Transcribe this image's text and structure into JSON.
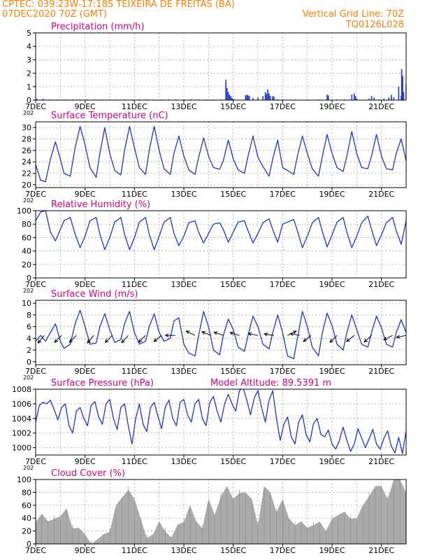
{
  "header": {
    "line1_left": "CPTEC:   039:23W-17:18S   TEIXEIRA DE FREITAS (BA)",
    "line2_left": "07DEC2020 70Z (GMT)",
    "line2_right": "Vertical Grid Line: 70Z",
    "line3_right": "TQ0126L028"
  },
  "colors": {
    "header": "#ff7f00",
    "title": "#e0007a",
    "line": "#1f32d6",
    "bar": "#aaaaaa",
    "wind_arrow": "#000000",
    "grid": "#9a9a9a"
  },
  "x_axis": {
    "ticks": [
      "7DEC",
      "9DEC",
      "11DEC",
      "13DEC",
      "15DEC",
      "17DEC",
      "19DEC",
      "21DEC"
    ],
    "tick_days": [
      7,
      9,
      11,
      13,
      15,
      17,
      19,
      21
    ],
    "range_days": [
      7,
      22
    ],
    "stub_label": "202"
  },
  "chart_data": [
    {
      "type": "bar",
      "title": "Precipitation (mm/h)",
      "ylim": [
        0,
        5
      ],
      "yticks": [
        0,
        1,
        2,
        3,
        4,
        5
      ],
      "grid": true,
      "x": [
        7.05,
        7.3,
        7.6,
        7.9,
        8.2,
        8.5,
        8.8,
        9.1,
        9.4,
        9.7,
        10.0,
        10.3,
        10.6,
        10.9,
        11.2,
        11.5,
        11.8,
        12.1,
        12.4,
        12.7,
        13.0,
        13.3,
        13.6,
        13.9,
        14.2,
        14.5,
        14.7,
        14.75,
        14.8,
        14.85,
        14.9,
        14.95,
        15.0,
        15.5,
        15.55,
        15.6,
        15.65,
        15.8,
        16.0,
        16.2,
        16.3,
        16.35,
        16.4,
        16.45,
        16.5,
        16.6,
        16.65,
        16.8,
        17.0,
        17.5,
        18.0,
        18.5,
        18.8,
        18.85,
        19.2,
        19.5,
        19.8,
        19.9,
        19.95,
        20.0,
        20.5,
        20.6,
        20.7,
        20.9,
        21.1,
        21.3,
        21.4,
        21.5,
        21.7,
        21.8,
        21.82,
        21.86,
        21.9,
        22.0
      ],
      "y": [
        0.1,
        0.1,
        0.05,
        0.05,
        0.05,
        0.05,
        0.05,
        0.05,
        0.05,
        0.05,
        0.05,
        0.05,
        0.05,
        0.05,
        0.05,
        0.05,
        0.05,
        0.05,
        0.05,
        0.05,
        0.05,
        0.05,
        0.05,
        0.05,
        0.05,
        0.05,
        1.5,
        0.9,
        0.6,
        0.4,
        0.3,
        0.15,
        0.1,
        0.35,
        0.4,
        0.35,
        0.3,
        0.15,
        0.2,
        0.3,
        0.6,
        0.45,
        0.8,
        0.5,
        0.3,
        0.3,
        0.25,
        0.05,
        0.05,
        0.05,
        0.05,
        0.05,
        0.4,
        0.35,
        0.05,
        0.05,
        0.4,
        0.5,
        0.3,
        0.1,
        0.1,
        0.3,
        0.2,
        0.05,
        0.1,
        0.2,
        0.4,
        0.2,
        1.0,
        0.3,
        2.3,
        1.8,
        0.6,
        1.2
      ]
    },
    {
      "type": "line",
      "title": "Surface Temperature (nC)",
      "ylim": [
        19.5,
        31
      ],
      "yticks": [
        20,
        22,
        24,
        26,
        28,
        30
      ],
      "grid": true,
      "x": [
        7.0,
        7.2,
        7.4,
        7.6,
        7.8,
        8.0,
        8.15,
        8.4,
        8.6,
        8.8,
        9.0,
        9.2,
        9.45,
        9.6,
        9.8,
        10.0,
        10.2,
        10.45,
        10.6,
        10.8,
        11.0,
        11.2,
        11.45,
        11.6,
        11.8,
        12.0,
        12.2,
        12.45,
        12.6,
        12.8,
        13.0,
        13.2,
        13.45,
        13.6,
        13.8,
        14.0,
        14.2,
        14.45,
        14.6,
        14.8,
        15.0,
        15.2,
        15.45,
        15.6,
        15.8,
        16.0,
        16.2,
        16.45,
        16.6,
        16.8,
        17.0,
        17.2,
        17.45,
        17.6,
        17.8,
        18.0,
        18.2,
        18.45,
        18.6,
        18.8,
        19.0,
        19.2,
        19.45,
        19.6,
        19.8,
        20.0,
        20.2,
        20.45,
        20.6,
        20.8,
        21.0,
        21.2,
        21.45,
        21.6,
        21.8,
        22.0
      ],
      "y": [
        23.5,
        20.8,
        20.5,
        24.5,
        27.5,
        24.5,
        22.0,
        21.5,
        26.5,
        30.2,
        27.0,
        23.0,
        21.3,
        25.5,
        30.0,
        25.5,
        22.5,
        21.7,
        26.0,
        30.2,
        26.5,
        23.0,
        21.8,
        26.0,
        30.2,
        26.0,
        22.8,
        21.8,
        25.5,
        28.5,
        25.0,
        22.6,
        21.8,
        24.8,
        28.2,
        25.0,
        23.0,
        22.7,
        24.2,
        27.8,
        24.5,
        22.6,
        22.0,
        25.0,
        28.5,
        24.8,
        23.2,
        21.5,
        24.5,
        27.8,
        23.0,
        22.5,
        21.8,
        25.0,
        28.5,
        25.5,
        22.8,
        21.5,
        24.8,
        28.8,
        25.5,
        23.0,
        22.3,
        25.0,
        29.3,
        25.5,
        23.0,
        22.8,
        25.0,
        28.8,
        25.0,
        22.8,
        22.6,
        25.5,
        28.0,
        24.2
      ]
    },
    {
      "type": "line",
      "title": "Relative Humidity (%)",
      "ylim": [
        0,
        100
      ],
      "yticks": [
        0,
        20,
        40,
        60,
        80,
        100
      ],
      "grid": true,
      "x": [
        7.0,
        7.2,
        7.4,
        7.6,
        7.8,
        8.0,
        8.15,
        8.4,
        8.6,
        8.8,
        9.0,
        9.2,
        9.45,
        9.6,
        9.8,
        10.0,
        10.2,
        10.45,
        10.6,
        10.8,
        11.0,
        11.2,
        11.45,
        11.6,
        11.8,
        12.0,
        12.2,
        12.45,
        12.6,
        12.8,
        13.0,
        13.2,
        13.45,
        13.6,
        13.8,
        14.0,
        14.2,
        14.45,
        14.6,
        14.8,
        15.0,
        15.2,
        15.45,
        15.6,
        15.8,
        16.0,
        16.2,
        16.45,
        16.6,
        16.8,
        17.0,
        17.2,
        17.45,
        17.6,
        17.8,
        18.0,
        18.2,
        18.45,
        18.6,
        18.8,
        19.0,
        19.2,
        19.45,
        19.6,
        19.8,
        20.0,
        20.2,
        20.45,
        20.6,
        20.8,
        21.0,
        21.2,
        21.45,
        21.6,
        21.8,
        22.0
      ],
      "y": [
        85,
        98,
        100,
        68,
        55,
        72,
        85,
        90,
        65,
        45,
        62,
        85,
        90,
        65,
        42,
        60,
        83,
        90,
        65,
        42,
        60,
        83,
        90,
        65,
        42,
        62,
        83,
        90,
        66,
        48,
        62,
        82,
        85,
        68,
        52,
        66,
        80,
        82,
        72,
        53,
        68,
        83,
        85,
        70,
        52,
        66,
        82,
        88,
        72,
        53,
        80,
        83,
        87,
        70,
        45,
        62,
        82,
        90,
        70,
        46,
        64,
        83,
        90,
        68,
        45,
        62,
        82,
        92,
        72,
        48,
        64,
        82,
        90,
        70,
        50,
        85
      ]
    },
    {
      "type": "line",
      "title": "Surface Wind (m/s)",
      "ylim": [
        -0.5,
        10.5
      ],
      "yticks": [
        0,
        2,
        4,
        6,
        8,
        10
      ],
      "grid": true,
      "x": [
        7.0,
        7.2,
        7.4,
        7.6,
        7.8,
        8.0,
        8.15,
        8.4,
        8.6,
        8.8,
        9.0,
        9.2,
        9.45,
        9.6,
        9.8,
        10.0,
        10.2,
        10.45,
        10.6,
        10.8,
        11.0,
        11.2,
        11.45,
        11.6,
        11.8,
        12.0,
        12.2,
        12.45,
        12.6,
        12.8,
        13.0,
        13.2,
        13.45,
        13.6,
        13.8,
        14.0,
        14.2,
        14.45,
        14.6,
        14.8,
        15.0,
        15.2,
        15.45,
        15.6,
        15.8,
        16.0,
        16.2,
        16.45,
        16.6,
        16.8,
        17.0,
        17.2,
        17.45,
        17.6,
        17.8,
        18.0,
        18.2,
        18.45,
        18.6,
        18.8,
        19.0,
        19.2,
        19.45,
        19.6,
        19.8,
        20.0,
        20.2,
        20.45,
        20.6,
        20.8,
        21.0,
        21.2,
        21.45,
        21.6,
        21.8,
        22.0
      ],
      "y": [
        3.5,
        4.5,
        3.5,
        5.0,
        6.5,
        3.5,
        2.3,
        3.0,
        6.5,
        8.8,
        6.0,
        3.0,
        3.2,
        6.0,
        8.2,
        5.5,
        3.3,
        3.8,
        6.5,
        8.6,
        5.0,
        3.0,
        3.5,
        6.0,
        8.2,
        5.0,
        3.5,
        4.0,
        7.0,
        7.5,
        3.0,
        1.5,
        1.0,
        4.5,
        8.6,
        6.0,
        2.0,
        1.2,
        4.5,
        7.3,
        5.5,
        2.5,
        1.8,
        4.5,
        7.8,
        6.0,
        3.0,
        2.2,
        5.0,
        8.0,
        5.0,
        1.0,
        0.5,
        4.0,
        8.6,
        6.0,
        2.5,
        1.0,
        4.8,
        8.3,
        6.2,
        3.0,
        2.0,
        5.0,
        8.0,
        5.5,
        3.0,
        2.5,
        5.0,
        7.8,
        5.8,
        3.0,
        2.5,
        5.0,
        7.2,
        5.0
      ],
      "arrows": [
        {
          "x": 7.35,
          "u": -1.0,
          "v": -1.2
        },
        {
          "x": 8.05,
          "u": -1.0,
          "v": -1.0
        },
        {
          "x": 8.65,
          "u": -1.0,
          "v": -1.0
        },
        {
          "x": 9.35,
          "u": -1.0,
          "v": -1.2
        },
        {
          "x": 10.1,
          "u": -1.0,
          "v": -1.0
        },
        {
          "x": 10.75,
          "u": -1.0,
          "v": -1.1
        },
        {
          "x": 11.45,
          "u": -1.0,
          "v": -1.0
        },
        {
          "x": 12.1,
          "u": -1.0,
          "v": -0.8
        },
        {
          "x": 12.65,
          "u": -1.0,
          "v": 0.0
        },
        {
          "x": 13.45,
          "u": -1.0,
          "v": 0.5
        },
        {
          "x": 14.1,
          "u": -1.0,
          "v": 0.4
        },
        {
          "x": 14.6,
          "u": -1.0,
          "v": 0.35
        },
        {
          "x": 15.25,
          "u": -1.0,
          "v": 0.3
        },
        {
          "x": 16.0,
          "u": -1.0,
          "v": 0.2
        },
        {
          "x": 16.65,
          "u": -1.0,
          "v": 0.15
        },
        {
          "x": 17.2,
          "u": 1.0,
          "v": 0.5
        },
        {
          "x": 17.7,
          "u": -1.0,
          "v": 0.2
        },
        {
          "x": 18.15,
          "u": -1.0,
          "v": -0.8
        },
        {
          "x": 19.2,
          "u": -1.0,
          "v": -1.0
        },
        {
          "x": 19.9,
          "u": -1.0,
          "v": -0.8
        },
        {
          "x": 20.6,
          "u": -1.0,
          "v": -0.9
        },
        {
          "x": 21.45,
          "u": -1.0,
          "v": -0.5
        },
        {
          "x": 22.0,
          "u": -1.0,
          "v": -0.2
        }
      ]
    },
    {
      "type": "line",
      "title": "Surface Pressure (hPa)",
      "annotation": "Model Altitude: 89.5391  m",
      "ylim": [
        999,
        1008
      ],
      "yticks": [
        1000,
        1002,
        1004,
        1006,
        1008
      ],
      "grid": true,
      "x": [
        7.0,
        7.15,
        7.3,
        7.45,
        7.6,
        7.75,
        7.9,
        8.05,
        8.2,
        8.35,
        8.5,
        8.65,
        8.8,
        8.95,
        9.1,
        9.25,
        9.4,
        9.55,
        9.7,
        9.85,
        10.0,
        10.15,
        10.3,
        10.45,
        10.6,
        10.75,
        10.9,
        11.05,
        11.2,
        11.35,
        11.5,
        11.65,
        11.8,
        11.95,
        12.1,
        12.25,
        12.4,
        12.55,
        12.7,
        12.85,
        13.0,
        13.15,
        13.3,
        13.45,
        13.6,
        13.75,
        13.9,
        14.05,
        14.2,
        14.35,
        14.5,
        14.65,
        14.8,
        14.95,
        15.1,
        15.25,
        15.4,
        15.55,
        15.7,
        15.85,
        16.0,
        16.15,
        16.3,
        16.45,
        16.6,
        16.75,
        16.9,
        17.05,
        17.2,
        17.35,
        17.5,
        17.65,
        17.8,
        17.95,
        18.1,
        18.25,
        18.4,
        18.55,
        18.7,
        18.85,
        19.0,
        19.15,
        19.3,
        19.45,
        19.6,
        19.75,
        19.9,
        20.05,
        20.2,
        20.35,
        20.5,
        20.65,
        20.8,
        20.95,
        21.1,
        21.25,
        21.4,
        21.55,
        21.7,
        21.85,
        22.0
      ],
      "y": [
        1003.5,
        1005.8,
        1006.2,
        1006.0,
        1006.5,
        1005.2,
        1003.8,
        1005.5,
        1006.0,
        1003.0,
        1002.0,
        1005.0,
        1005.5,
        1004.0,
        1003.0,
        1005.8,
        1006.3,
        1004.2,
        1003.2,
        1006.0,
        1006.6,
        1004.0,
        1002.5,
        1005.5,
        1006.0,
        1003.0,
        1000.5,
        1004.0,
        1006.0,
        1003.2,
        1002.2,
        1005.5,
        1006.2,
        1004.3,
        1002.6,
        1005.6,
        1006.5,
        1004.0,
        1003.0,
        1006.2,
        1006.6,
        1004.5,
        1003.5,
        1006.0,
        1006.6,
        1004.0,
        1003.0,
        1006.2,
        1007.0,
        1005.0,
        1003.5,
        1006.0,
        1007.3,
        1006.0,
        1005.0,
        1007.8,
        1008.2,
        1006.5,
        1004.5,
        1006.8,
        1007.8,
        1005.5,
        1003.5,
        1006.5,
        1007.8,
        1004.0,
        1001.0,
        1003.2,
        1004.2,
        1001.5,
        1000.5,
        1003.5,
        1004.5,
        1001.8,
        1000.8,
        1003.3,
        1004.0,
        1001.8,
        1001.5,
        1002.4,
        1000.5,
        999.8,
        1001.0,
        1002.8,
        1001.0,
        999.5,
        1000.5,
        1002.6,
        1001.3,
        1000.0,
        1001.2,
        1002.5,
        1000.5,
        999.8,
        1001.3,
        1002.3,
        1000.2,
        999.3,
        1001.4,
        999.2,
        1002.3
      ]
    },
    {
      "type": "area",
      "title": "Cloud Cover (%)",
      "ylim": [
        0,
        100
      ],
      "yticks": [
        0,
        20,
        40,
        60,
        80,
        100
      ],
      "grid": true,
      "x": [
        7.0,
        7.25,
        7.5,
        7.75,
        8.0,
        8.25,
        8.5,
        8.75,
        9.0,
        9.25,
        9.5,
        9.75,
        10.0,
        10.25,
        10.5,
        10.75,
        11.0,
        11.25,
        11.5,
        11.75,
        12.0,
        12.25,
        12.5,
        12.75,
        13.0,
        13.25,
        13.5,
        13.75,
        14.0,
        14.25,
        14.5,
        14.75,
        15.0,
        15.25,
        15.5,
        15.75,
        16.0,
        16.25,
        16.5,
        16.75,
        17.0,
        17.25,
        17.5,
        17.75,
        18.0,
        18.25,
        18.5,
        18.75,
        19.0,
        19.25,
        19.5,
        19.75,
        20.0,
        20.25,
        20.5,
        20.75,
        21.0,
        21.25,
        21.5,
        21.75,
        22.0
      ],
      "y": [
        40,
        42,
        35,
        45,
        38,
        55,
        30,
        20,
        15,
        5,
        2,
        15,
        25,
        55,
        72,
        90,
        65,
        40,
        15,
        10,
        35,
        25,
        5,
        30,
        40,
        55,
        35,
        30,
        65,
        45,
        80,
        85,
        70,
        85,
        75,
        70,
        35,
        85,
        80,
        55,
        65,
        40,
        35,
        30,
        25,
        35,
        30,
        20,
        45,
        40,
        50,
        45,
        35,
        60,
        80,
        85,
        90,
        75,
        95,
        100,
        85
      ]
    }
  ]
}
